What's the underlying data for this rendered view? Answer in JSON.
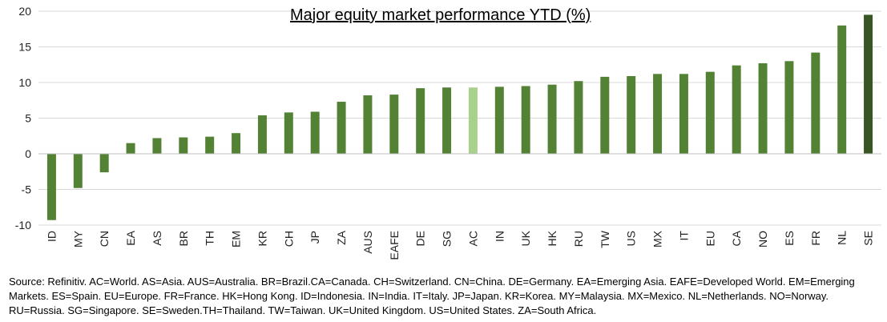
{
  "chart_data": {
    "type": "bar",
    "title": "Major equity market performance YTD (%)",
    "xlabel": "",
    "ylabel": "",
    "ylim": [
      -10,
      20
    ],
    "yticks": [
      -10,
      -5,
      0,
      5,
      10,
      15,
      20
    ],
    "grid": true,
    "legend": "none",
    "categories": [
      "ID",
      "MY",
      "CN",
      "EA",
      "AS",
      "BR",
      "TH",
      "EM",
      "KR",
      "CH",
      "JP",
      "ZA",
      "AUS",
      "EAFE",
      "DE",
      "SG",
      "AC",
      "IN",
      "UK",
      "HK",
      "RU",
      "TW",
      "US",
      "MX",
      "IT",
      "EU",
      "CA",
      "NO",
      "ES",
      "FR",
      "NL",
      "SE"
    ],
    "values": [
      -9.3,
      -4.8,
      -2.6,
      1.5,
      2.2,
      2.3,
      2.4,
      2.9,
      5.4,
      5.8,
      5.9,
      7.3,
      8.2,
      8.3,
      9.2,
      9.3,
      9.3,
      9.4,
      9.5,
      9.7,
      10.2,
      10.8,
      10.9,
      11.2,
      11.2,
      11.5,
      12.4,
      12.7,
      13.0,
      14.2,
      18.0,
      19.5
    ],
    "colors": {
      "default": "#548235",
      "highlight_light": "#A9D18E",
      "highlight_dark": "#375623",
      "grid": "#d9d9d9",
      "axis": "#bfbfbf"
    },
    "bar_color_map": {
      "AC": "highlight_light",
      "SE": "highlight_dark"
    }
  },
  "footnote": "Source: Refinitiv. AC=World. AS=Asia. AUS=Australia. BR=Brazil.CA=Canada. CH=Switzerland. CN=China. DE=Germany. EA=Emerging Asia. EAFE=Developed World. EM=Emerging Markets. ES=Spain. EU=Europe. FR=France. HK=Hong Kong. ID=Indonesia. IN=India. IT=Italy. JP=Japan. KR=Korea. MY=Malaysia. MX=Mexico. NL=Netherlands. NO=Norway. RU=Russia. SG=Singapore. SE=Sweden.TH=Thailand. TW=Taiwan. UK=United Kingdom. US=United States. ZA=South Africa."
}
